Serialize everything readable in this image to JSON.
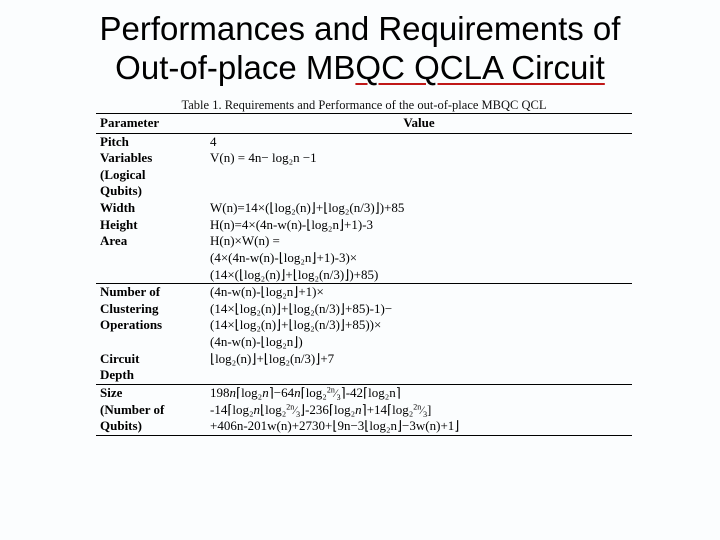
{
  "title_line1": "Performances and Requirements of",
  "title_line2": "Out-of-place MB",
  "title_line2b": "QC QCLA Circuit",
  "caption": "Table 1. Requirements and Performance of the out-of-place MBQC QCL",
  "header_param": "Parameter",
  "header_value": "Value",
  "rows": {
    "pitch_p": "Pitch",
    "pitch_v": "4",
    "vars_p1": "Variables",
    "vars_p2": "(Logical",
    "vars_p3": "Qubits)",
    "vars_v": "V(n) = 4n− log₂n −1",
    "width_p": "Width",
    "width_v": "W(n)=14×(⌊log₂(n)⌋+⌊log₂(n/3)⌋)+85",
    "height_p": "Height",
    "height_v": "H(n)=4×(4n-w(n)-⌊log₂n⌋+1)-3",
    "area_p": "Area",
    "area_v1": "H(n)×W(n) =",
    "area_v2": "(4×(4n-w(n)-⌊log₂n⌋+1)-3)×",
    "area_v3": "(14×(⌊log₂(n)⌋+⌊log₂(n/3)⌋)+85)",
    "nco_p1": "Number of",
    "nco_p2": "Clustering",
    "nco_p3": "Operations",
    "nco_v1": "(4n-w(n)-⌊log₂n⌋+1)×",
    "nco_v2": "(14×⌊log₂(n)⌋+⌊log₂(n/3)⌋+85)-1)−",
    "nco_v3": "(14×⌊log₂(n)⌋+⌊log₂(n/3)⌋+85))×",
    "nco_v4": "(4n-w(n)-⌊log₂n⌋)",
    "depth_p1": "Circuit",
    "depth_p2": "Depth",
    "depth_v": "⌊log₂(n)⌋+⌊log₂(n/3)⌋+7",
    "size_p1": "Size",
    "size_p2": "(Number of",
    "size_p3": "Qubits)",
    "size_v2_end": "-42⌈log₂n⌉",
    "size_v3_end": "]",
    "size_v4": "+406n-201w(n)+2730+⌊9n−3⌊log₂n⌋−3w(n)+1⌋"
  }
}
